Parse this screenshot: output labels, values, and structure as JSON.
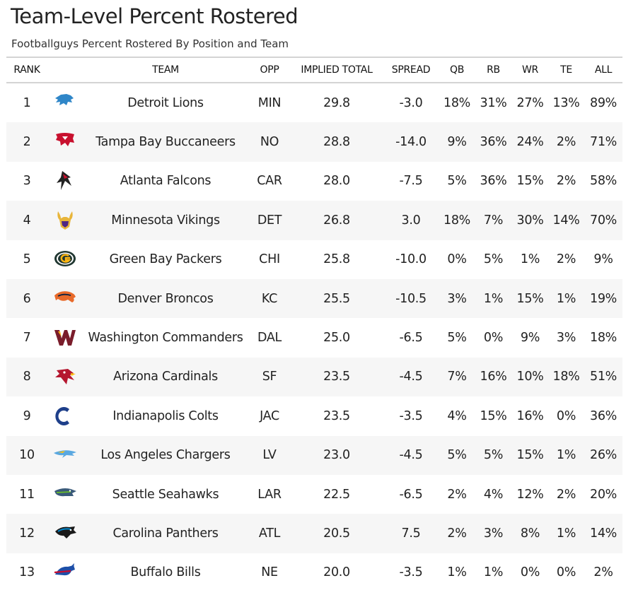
{
  "title": "Team-Level Percent Rostered",
  "subtitle": "Footballguys Percent Rostered By Position and Team",
  "columns": {
    "rank": "RANK",
    "logo": "",
    "team": "TEAM",
    "opp": "OPP",
    "implied_total": "IMPLIED TOTAL",
    "spread": "SPREAD",
    "qb": "QB",
    "rb": "RB",
    "wr": "WR",
    "te": "TE",
    "all": "ALL"
  },
  "rows": [
    {
      "rank": "1",
      "logo_icon": "detroit-lions-logo-icon",
      "logo_color": "#2f86c8",
      "team": "Detroit Lions",
      "opp": "MIN",
      "implied_total": "29.8",
      "spread": "-3.0",
      "qb": "18%",
      "rb": "31%",
      "wr": "27%",
      "te": "13%",
      "all": "89%"
    },
    {
      "rank": "2",
      "logo_icon": "tampa-bay-buccaneers-logo-icon",
      "logo_color": "#c8102e",
      "team": "Tampa Bay Buccaneers",
      "opp": "NO",
      "implied_total": "28.8",
      "spread": "-14.0",
      "qb": "9%",
      "rb": "36%",
      "wr": "24%",
      "te": "2%",
      "all": "71%"
    },
    {
      "rank": "3",
      "logo_icon": "atlanta-falcons-logo-icon",
      "logo_color": "#222222",
      "team": "Atlanta Falcons",
      "opp": "CAR",
      "implied_total": "28.0",
      "spread": "-7.5",
      "qb": "5%",
      "rb": "36%",
      "wr": "15%",
      "te": "2%",
      "all": "58%"
    },
    {
      "rank": "4",
      "logo_icon": "minnesota-vikings-logo-icon",
      "logo_color": "#e8b53a",
      "team": "Minnesota Vikings",
      "opp": "DET",
      "implied_total": "26.8",
      "spread": "3.0",
      "qb": "18%",
      "rb": "7%",
      "wr": "30%",
      "te": "14%",
      "all": "70%"
    },
    {
      "rank": "5",
      "logo_icon": "green-bay-packers-logo-icon",
      "logo_color": "#203731",
      "team": "Green Bay Packers",
      "opp": "CHI",
      "implied_total": "25.8",
      "spread": "-10.0",
      "qb": "0%",
      "rb": "5%",
      "wr": "1%",
      "te": "2%",
      "all": "9%"
    },
    {
      "rank": "6",
      "logo_icon": "denver-broncos-logo-icon",
      "logo_color": "#e86a2a",
      "team": "Denver Broncos",
      "opp": "KC",
      "implied_total": "25.5",
      "spread": "-10.5",
      "qb": "3%",
      "rb": "1%",
      "wr": "15%",
      "te": "1%",
      "all": "19%"
    },
    {
      "rank": "7",
      "logo_icon": "washington-commanders-logo-icon",
      "logo_color": "#7a1d2b",
      "team": "Washington Commanders",
      "opp": "DAL",
      "implied_total": "25.0",
      "spread": "-6.5",
      "qb": "5%",
      "rb": "0%",
      "wr": "9%",
      "te": "3%",
      "all": "18%"
    },
    {
      "rank": "8",
      "logo_icon": "arizona-cardinals-logo-icon",
      "logo_color": "#b5172f",
      "team": "Arizona Cardinals",
      "opp": "SF",
      "implied_total": "23.5",
      "spread": "-4.5",
      "qb": "7%",
      "rb": "16%",
      "wr": "10%",
      "te": "18%",
      "all": "51%"
    },
    {
      "rank": "9",
      "logo_icon": "indianapolis-colts-logo-icon",
      "logo_color": "#1e3f8a",
      "team": "Indianapolis Colts",
      "opp": "JAC",
      "implied_total": "23.5",
      "spread": "-3.5",
      "qb": "4%",
      "rb": "15%",
      "wr": "16%",
      "te": "0%",
      "all": "36%"
    },
    {
      "rank": "10",
      "logo_icon": "los-angeles-chargers-logo-icon",
      "logo_color": "#5aa8e0",
      "team": "Los Angeles Chargers",
      "opp": "LV",
      "implied_total": "23.0",
      "spread": "-4.5",
      "qb": "5%",
      "rb": "5%",
      "wr": "15%",
      "te": "1%",
      "all": "26%"
    },
    {
      "rank": "11",
      "logo_icon": "seattle-seahawks-logo-icon",
      "logo_color": "#3a5a7a",
      "team": "Seattle Seahawks",
      "opp": "LAR",
      "implied_total": "22.5",
      "spread": "-6.5",
      "qb": "2%",
      "rb": "4%",
      "wr": "12%",
      "te": "2%",
      "all": "20%"
    },
    {
      "rank": "12",
      "logo_icon": "carolina-panthers-logo-icon",
      "logo_color": "#1a1a1a",
      "team": "Carolina Panthers",
      "opp": "ATL",
      "implied_total": "20.5",
      "spread": "7.5",
      "qb": "2%",
      "rb": "3%",
      "wr": "8%",
      "te": "1%",
      "all": "14%"
    },
    {
      "rank": "13",
      "logo_icon": "buffalo-bills-logo-icon",
      "logo_color": "#1d4fa8",
      "team": "Buffalo Bills",
      "opp": "NE",
      "implied_total": "20.0",
      "spread": "-3.5",
      "qb": "1%",
      "rb": "1%",
      "wr": "0%",
      "te": "0%",
      "all": "2%"
    }
  ]
}
